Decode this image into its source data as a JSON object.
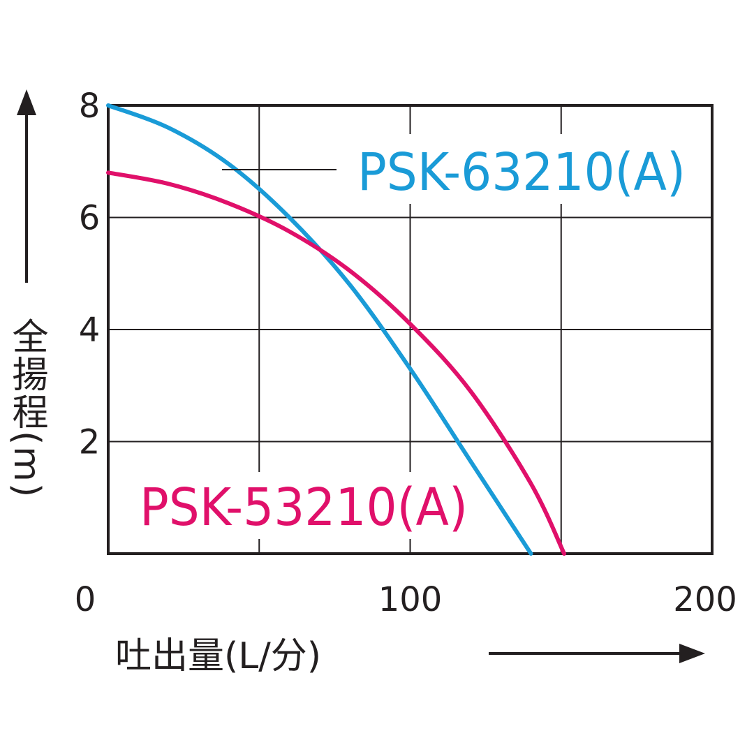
{
  "chart_data": {
    "type": "line",
    "xlabel": "吐出量(L/分)",
    "ylabel": "全揚程(m)",
    "xlim": [
      0,
      200
    ],
    "ylim": [
      0,
      8
    ],
    "x_ticks": [
      "0",
      "100",
      "200"
    ],
    "y_ticks": [
      "2",
      "4",
      "6",
      "8"
    ],
    "x_gridlines": [
      0,
      50,
      100,
      150,
      200
    ],
    "y_gridlines": [
      0,
      2,
      4,
      6,
      8
    ],
    "grid": true,
    "series": [
      {
        "name": "PSK-63210(A)",
        "color": "#1a9bd7",
        "x": [
          0,
          20,
          40,
          60,
          80,
          100,
          120,
          140
        ],
        "y": [
          8.0,
          7.6,
          6.95,
          6.0,
          4.8,
          3.3,
          1.65,
          0.0
        ]
      },
      {
        "name": "PSK-53210(A)",
        "color": "#e0106a",
        "x": [
          0,
          20,
          40,
          60,
          80,
          100,
          120,
          140,
          151
        ],
        "y": [
          6.8,
          6.6,
          6.25,
          5.75,
          5.05,
          4.1,
          2.9,
          1.25,
          0.0
        ]
      }
    ]
  }
}
